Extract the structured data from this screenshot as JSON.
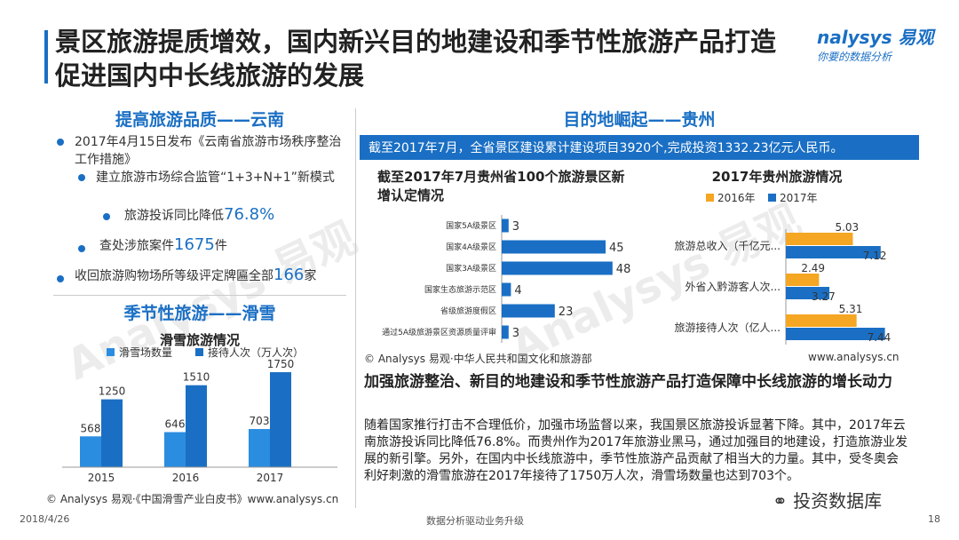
{
  "header": {
    "title_line1": "景区旅游提质增效，国内新兴目的地建设和季节性旅游产品打造",
    "title_line2": "促进国内中长线旅游的发展",
    "logo_brand": "nalysys 易观",
    "logo_slogan": "你要的数据分析"
  },
  "left": {
    "section1_title": "提高旅游品质——云南",
    "b1": "2017年4月15日发布《云南省旅游市场秩序整治工作措施》",
    "b2": "建立旅游市场综合监管“1+3+N+1”新模式",
    "b3_text": "旅游投诉同比降低",
    "b3_num": "76.8%",
    "b4_text": "查处涉旅案件",
    "b4_num": "1675",
    "b4_unit": "件",
    "b5_text": "收回旅游购物场所等级评定牌匾全部",
    "b5_num": "166",
    "b5_unit": "家",
    "section2_title": "季节性旅游——滑雪",
    "ski_title": "滑雪旅游情况",
    "source": "© Analysys 易观·《中国滑雪产业白皮书》www.analysys.cn"
  },
  "right": {
    "section_title": "目的地崛起——贵州",
    "banner": "截至2017年7月，全省景区建设累计建设项目3920个,完成投资1332.23亿元人民币。",
    "chart1_title": "截至2017年7月贵州省100个旅游景区新增认定情况",
    "chart2_title": "2017年贵州旅游情况",
    "source_left": "© Analysys 易观·中华人民共和国文化和旅游部",
    "source_right": "www.analysys.cn",
    "summary_title": "加强旅游整治、新目的地建设和季节性旅游产品打造保障中长线旅游的增长动力",
    "summary_body": "随着国家推行打击不合理低价，加强市场监督以来，我国景区旅游投诉显著下降。其中，2017年云南旅游投诉同比降低76.8%。而贵州作为2017年旅游业黑马，通过加强目的地建设，打造旅游业发展的新引擎。另外，在国内中长线旅游中，季节性旅游产品贡献了相当大的力量。其中，受冬奥会利好刺激的滑雪旅游在2017年接待了1750万人次，滑雪场数量也达到703个。"
  },
  "footer": {
    "date": "2018/4/26",
    "center": "数据分析驱动业务升级",
    "wechat": "投资数据库",
    "page": "18"
  },
  "watermark": "Analysys 易观",
  "colors": {
    "primary": "#1a6fc4",
    "orange": "#f5a623",
    "light_blue": "#2b8de0"
  },
  "chart_data": [
    {
      "type": "bar",
      "title": "滑雪旅游情况",
      "categories": [
        "2015",
        "2016",
        "2017"
      ],
      "series": [
        {
          "name": "滑雪场数量",
          "values": [
            568,
            646,
            703
          ],
          "color": "#2b8de0"
        },
        {
          "name": "接待人次（万人次）",
          "values": [
            1250,
            1510,
            1750
          ],
          "color": "#1a6fc4"
        }
      ]
    },
    {
      "type": "bar",
      "orientation": "horizontal",
      "title": "截至2017年7月贵州省100个旅游景区新增认定情况",
      "categories": [
        "国家5A级景区",
        "国家4A级景区",
        "国家3A级景区",
        "国家生态旅游示范区",
        "省级旅游度假区",
        "通过5A级旅游景区资源质量评审"
      ],
      "values": [
        3,
        45,
        48,
        4,
        23,
        3
      ],
      "color": "#1a6fc4"
    },
    {
      "type": "bar",
      "orientation": "horizontal",
      "title": "2017年贵州旅游情况",
      "categories": [
        "旅游总收入（千亿元...",
        "外省入黔游客人次...",
        "旅游接待人次（亿人..."
      ],
      "series": [
        {
          "name": "2016年",
          "values": [
            5.03,
            2.49,
            5.31
          ],
          "color": "#f5a623"
        },
        {
          "name": "2017年",
          "values": [
            7.12,
            3.27,
            7.44
          ],
          "color": "#1a6fc4"
        }
      ]
    }
  ]
}
